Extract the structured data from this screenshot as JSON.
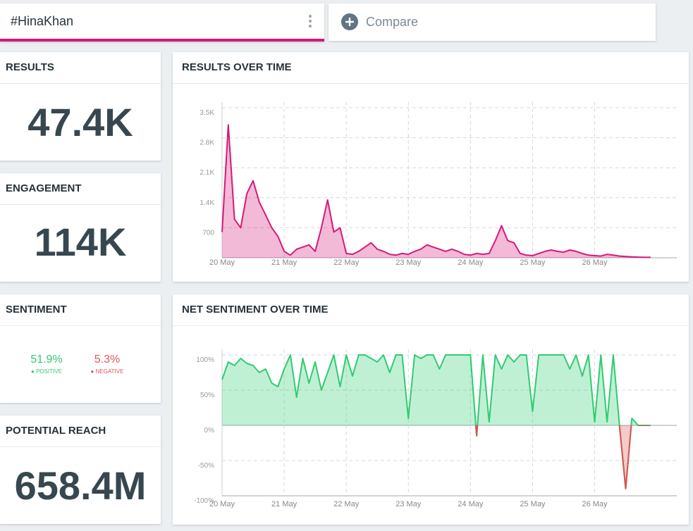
{
  "search": {
    "query": "#HinaKhan",
    "compare": "Compare"
  },
  "cards": {
    "results": {
      "title": "RESULTS",
      "value": "47.4K"
    },
    "engagement": {
      "title": "ENGAGEMENT",
      "value": "114K"
    },
    "sentiment": {
      "title": "SENTIMENT",
      "positive": "51.9%",
      "positive_label": "POSITIVE",
      "negative": "5.3%",
      "negative_label": "NEGATIVE"
    },
    "reach": {
      "title": "POTENTIAL REACH",
      "value": "658.4M"
    }
  },
  "chart_data": [
    {
      "type": "area",
      "title": "RESULTS OVER TIME",
      "x": [
        0,
        0.1,
        0.2,
        0.3,
        0.4,
        0.5,
        0.6,
        0.7,
        0.8,
        0.9,
        1,
        1.1,
        1.2,
        1.3,
        1.4,
        1.5,
        1.6,
        1.7,
        1.8,
        1.9,
        2,
        2.1,
        2.2,
        2.3,
        2.4,
        2.5,
        2.6,
        2.7,
        2.8,
        2.9,
        3,
        3.1,
        3.2,
        3.3,
        3.4,
        3.5,
        3.6,
        3.7,
        3.8,
        3.9,
        4,
        4.1,
        4.2,
        4.3,
        4.4,
        4.5,
        4.6,
        4.7,
        4.8,
        4.9,
        5,
        5.1,
        5.2,
        5.3,
        5.4,
        5.5,
        5.6,
        5.7,
        5.8,
        5.9,
        6,
        6.1,
        6.2,
        6.3,
        6.4,
        6.5,
        6.6,
        6.7,
        6.8,
        6.9
      ],
      "series": [
        {
          "color": "#d6197a",
          "values": [
            600,
            3100,
            900,
            700,
            1500,
            1800,
            1300,
            1000,
            700,
            500,
            150,
            60,
            200,
            250,
            300,
            150,
            700,
            1350,
            600,
            700,
            100,
            80,
            150,
            250,
            350,
            200,
            150,
            80,
            60,
            100,
            80,
            150,
            200,
            300,
            250,
            200,
            150,
            200,
            150,
            80,
            60,
            100,
            80,
            100,
            400,
            750,
            400,
            350,
            100,
            60,
            50,
            100,
            150,
            180,
            150,
            130,
            180,
            150,
            100,
            60,
            50,
            40,
            80,
            60,
            40,
            30,
            20,
            15,
            10,
            10
          ]
        }
      ],
      "xlim": [
        0,
        7.3
      ],
      "xticks": [
        {
          "value": 0,
          "label": "20 May"
        },
        {
          "value": 1,
          "label": "21 May"
        },
        {
          "value": 2,
          "label": "22 May"
        },
        {
          "value": 3,
          "label": "23 May"
        },
        {
          "value": 4,
          "label": "24 May"
        },
        {
          "value": 5,
          "label": "25 May"
        },
        {
          "value": 6,
          "label": "26 May"
        }
      ],
      "ylim": [
        0,
        3500
      ],
      "yticks": [
        {
          "value": 700,
          "label": "700"
        },
        {
          "value": 1400,
          "label": "1.4K"
        },
        {
          "value": 2100,
          "label": "2.1K"
        },
        {
          "value": 2800,
          "label": "2.8K"
        },
        {
          "value": 3500,
          "label": "3.5K"
        }
      ],
      "grid": true
    },
    {
      "type": "area",
      "title": "NET SENTIMENT OVER TIME",
      "x": [
        0,
        0.1,
        0.2,
        0.3,
        0.4,
        0.5,
        0.6,
        0.7,
        0.8,
        0.9,
        1,
        1.1,
        1.2,
        1.3,
        1.4,
        1.5,
        1.6,
        1.7,
        1.8,
        1.9,
        2,
        2.1,
        2.2,
        2.3,
        2.4,
        2.5,
        2.6,
        2.7,
        2.8,
        2.9,
        3,
        3.1,
        3.2,
        3.3,
        3.4,
        3.5,
        3.6,
        3.7,
        3.8,
        3.9,
        4,
        4.1,
        4.2,
        4.3,
        4.4,
        4.5,
        4.6,
        4.7,
        4.8,
        4.9,
        5,
        5.1,
        5.2,
        5.3,
        5.4,
        5.5,
        5.6,
        5.7,
        5.8,
        5.9,
        6,
        6.1,
        6.2,
        6.3,
        6.4,
        6.5,
        6.6,
        6.7,
        6.8,
        6.9
      ],
      "series": [
        {
          "color": "#2ecc71",
          "negative_color": "#d9534f",
          "values": [
            65,
            90,
            85,
            95,
            88,
            85,
            75,
            80,
            60,
            55,
            80,
            100,
            40,
            95,
            60,
            90,
            50,
            75,
            100,
            55,
            100,
            70,
            100,
            100,
            95,
            90,
            100,
            75,
            100,
            100,
            10,
            100,
            95,
            100,
            100,
            80,
            100,
            100,
            100,
            100,
            100,
            -15,
            100,
            5,
            100,
            80,
            100,
            90,
            100,
            100,
            20,
            100,
            100,
            100,
            100,
            100,
            80,
            100,
            70,
            100,
            5,
            100,
            5,
            100,
            0,
            -90,
            10,
            0,
            0,
            0
          ]
        }
      ],
      "xlim": [
        0,
        7.3
      ],
      "xticks": [
        {
          "value": 0,
          "label": "20 May"
        },
        {
          "value": 1,
          "label": "21 May"
        },
        {
          "value": 2,
          "label": "22 May"
        },
        {
          "value": 3,
          "label": "23 May"
        },
        {
          "value": 4,
          "label": "24 May"
        },
        {
          "value": 5,
          "label": "25 May"
        },
        {
          "value": 6,
          "label": "26 May"
        }
      ],
      "ylim": [
        -100,
        100
      ],
      "yticks": [
        {
          "value": -100,
          "label": "-100%"
        },
        {
          "value": -50,
          "label": "-50%"
        },
        {
          "value": 0,
          "label": "0%"
        },
        {
          "value": 50,
          "label": "50%"
        },
        {
          "value": 100,
          "label": "100%"
        }
      ],
      "grid": true
    }
  ]
}
